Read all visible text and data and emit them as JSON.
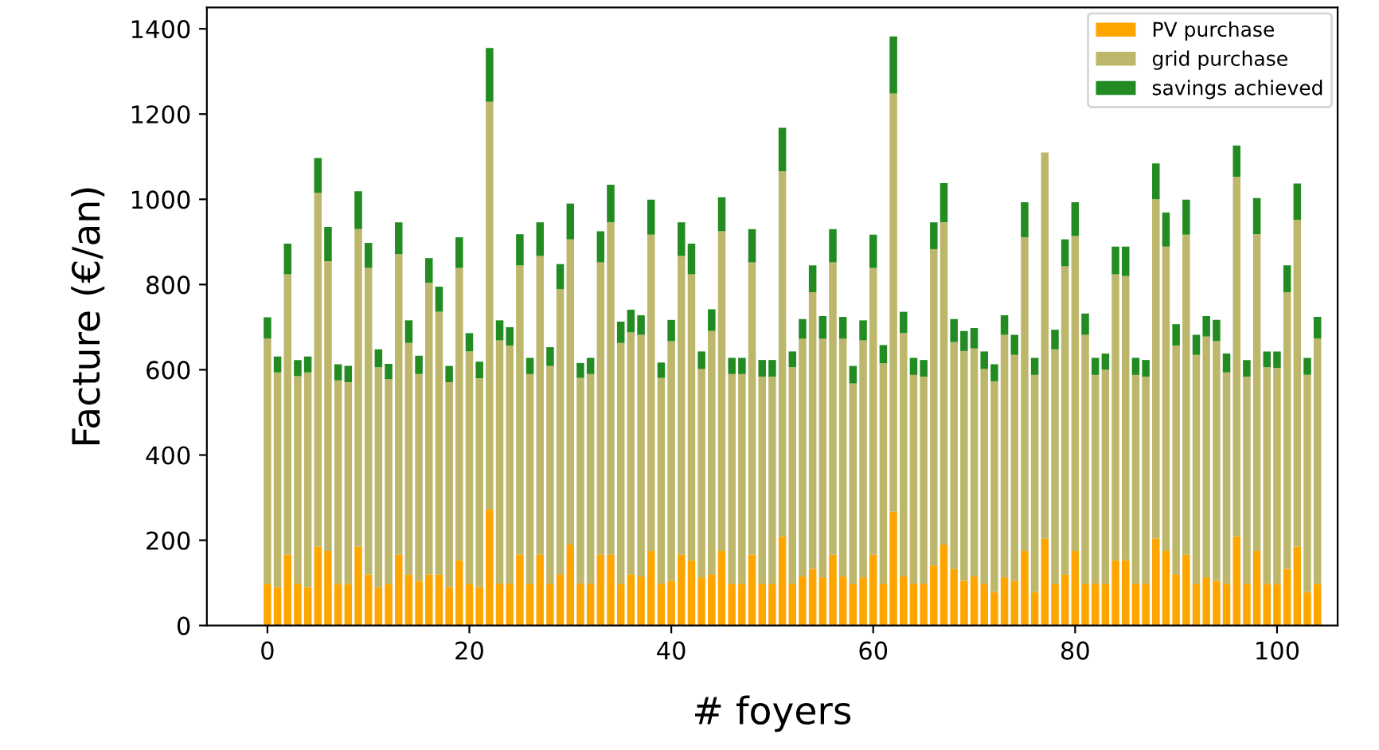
{
  "chart_data": {
    "type": "bar",
    "stacked": true,
    "xlabel": "# foyers",
    "ylabel": "Facture (€/an)",
    "x": [
      0,
      1,
      2,
      3,
      4,
      5,
      6,
      7,
      8,
      9,
      10,
      11,
      12,
      13,
      14,
      15,
      16,
      17,
      18,
      19,
      20,
      21,
      22,
      23,
      24,
      25,
      26,
      27,
      28,
      29,
      30,
      31,
      32,
      33,
      34,
      35,
      36,
      37,
      38,
      39,
      40,
      41,
      42,
      43,
      44,
      45,
      46,
      47,
      48,
      49,
      50,
      51,
      52,
      53,
      54,
      55,
      56,
      57,
      58,
      59,
      60,
      61,
      62,
      63,
      64,
      65,
      66,
      67,
      68,
      69,
      70,
      71,
      72,
      73,
      74,
      75,
      76,
      77,
      78,
      79,
      80,
      81,
      82,
      83,
      84,
      85,
      86,
      87,
      88,
      89,
      90,
      91,
      92,
      93,
      94,
      95,
      96,
      97,
      98,
      99,
      100,
      101,
      102,
      103,
      104
    ],
    "series": [
      {
        "name": "PV purchase",
        "color": "#ffa500",
        "values": [
          98,
          90,
          166,
          98,
          90,
          185,
          175,
          98,
          98,
          185,
          120,
          90,
          98,
          166,
          120,
          105,
          120,
          120,
          90,
          153,
          98,
          90,
          272,
          98,
          98,
          166,
          98,
          166,
          98,
          120,
          190,
          98,
          98,
          166,
          166,
          98,
          120,
          115,
          175,
          98,
          105,
          166,
          153,
          113,
          120,
          175,
          98,
          98,
          166,
          98,
          98,
          209,
          98,
          115,
          133,
          113,
          166,
          115,
          98,
          113,
          166,
          98,
          267,
          115,
          98,
          98,
          141,
          190,
          133,
          105,
          115,
          98,
          78,
          113,
          105,
          175,
          78,
          204,
          98,
          120,
          175,
          98,
          98,
          98,
          153,
          153,
          98,
          98,
          204,
          175,
          120,
          166,
          98,
          113,
          105,
          98,
          209,
          98,
          175,
          98,
          98,
          133,
          185,
          78,
          98
        ]
      },
      {
        "name": "grid purchase",
        "color": "#bdb76b",
        "values": [
          575,
          504,
          658,
          487,
          504,
          830,
          680,
          477,
          473,
          745,
          719,
          516,
          480,
          705,
          543,
          485,
          684,
          616,
          481,
          686,
          545,
          490,
          957,
          571,
          559,
          679,
          492,
          701,
          511,
          669,
          716,
          483,
          492,
          686,
          780,
          565,
          568,
          567,
          742,
          483,
          562,
          701,
          671,
          489,
          571,
          750,
          492,
          492,
          686,
          486,
          486,
          857,
          508,
          558,
          649,
          560,
          686,
          558,
          470,
          556,
          673,
          517,
          981,
          571,
          490,
          486,
          742,
          756,
          532,
          539,
          535,
          504,
          495,
          569,
          530,
          736,
          510,
          906,
          550,
          723,
          739,
          584,
          490,
          502,
          671,
          667,
          490,
          486,
          796,
          714,
          537,
          751,
          537,
          565,
          562,
          496,
          844,
          486,
          743,
          508,
          506,
          649,
          767,
          510,
          575
        ]
      },
      {
        "name": "savings achieved",
        "color": "#228b22",
        "values": [
          50,
          37,
          72,
          38,
          37,
          82,
          80,
          38,
          38,
          89,
          59,
          42,
          36,
          75,
          53,
          43,
          58,
          59,
          38,
          72,
          43,
          39,
          126,
          47,
          43,
          73,
          38,
          79,
          44,
          59,
          84,
          35,
          38,
          73,
          88,
          50,
          53,
          46,
          82,
          36,
          50,
          79,
          72,
          41,
          51,
          80,
          38,
          38,
          78,
          39,
          39,
          102,
          37,
          46,
          63,
          53,
          78,
          51,
          41,
          47,
          78,
          43,
          134,
          50,
          40,
          39,
          63,
          92,
          54,
          47,
          48,
          41,
          40,
          46,
          47,
          82,
          40,
          null,
          46,
          63,
          79,
          50,
          40,
          38,
          65,
          69,
          40,
          39,
          84,
          80,
          50,
          82,
          47,
          48,
          50,
          44,
          73,
          39,
          85,
          37,
          39,
          63,
          85,
          40,
          51
        ]
      }
    ],
    "xlim": [
      -6,
      106
    ],
    "xticks": [
      0,
      20,
      40,
      60,
      80,
      100
    ],
    "ylim": [
      0,
      1450
    ],
    "yticks": [
      0,
      200,
      400,
      600,
      800,
      1000,
      1200,
      1400
    ],
    "grid": false,
    "legend": "top right"
  }
}
